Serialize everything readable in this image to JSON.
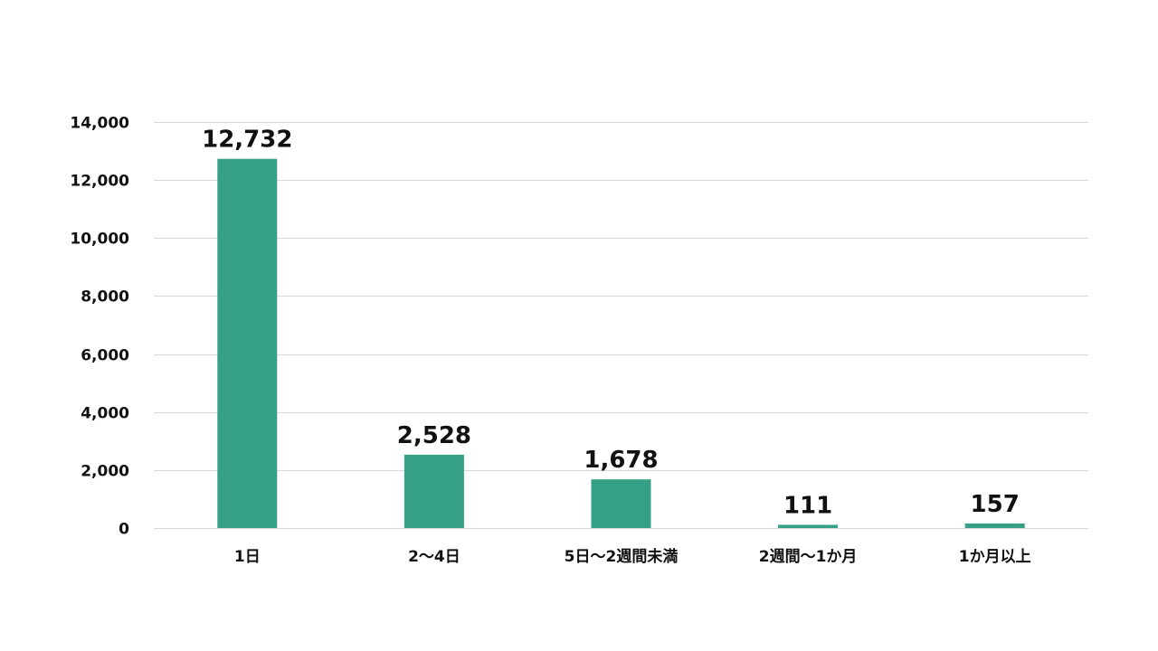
{
  "chart_data": {
    "type": "bar",
    "title": "",
    "xlabel": "",
    "ylabel": "",
    "categories": [
      "1日",
      "2～4日",
      "5日～2週間未満",
      "2週間～1か月",
      "1か月以上"
    ],
    "values": [
      12732,
      2528,
      1678,
      111,
      157
    ],
    "data_labels": [
      "12,732",
      "2,528",
      "1,678",
      "111",
      "157"
    ],
    "ylim": [
      0,
      14000
    ],
    "yticks": [
      0,
      2000,
      4000,
      6000,
      8000,
      10000,
      12000,
      14000
    ],
    "ytick_labels": [
      "0",
      "2,000",
      "4,000",
      "6,000",
      "8,000",
      "10,000",
      "12,000",
      "14,000"
    ],
    "grid": true,
    "legend": "none",
    "bar_color": "#35a085"
  }
}
